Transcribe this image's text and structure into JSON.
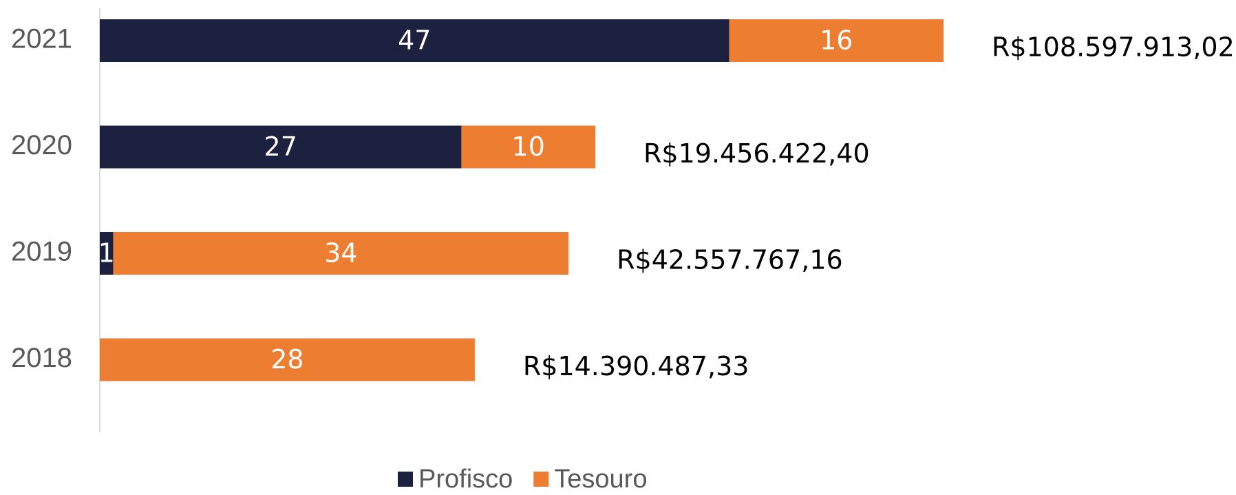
{
  "chart_data": {
    "type": "stacked_barh",
    "categories": [
      "2021",
      "2020",
      "2019",
      "2018"
    ],
    "series": [
      {
        "name": "Profisco",
        "color": "#1d2140",
        "values": [
          47,
          27,
          1,
          null
        ]
      },
      {
        "name": "Tesouro",
        "color": "#ed7d31",
        "values": [
          16,
          10,
          34,
          28
        ]
      }
    ],
    "annotations": [
      "R$108.597.913,02",
      "R$19.456.422,40",
      "R$42.557.767,16",
      "R$14.390.487,33"
    ],
    "legend": "bottom"
  }
}
